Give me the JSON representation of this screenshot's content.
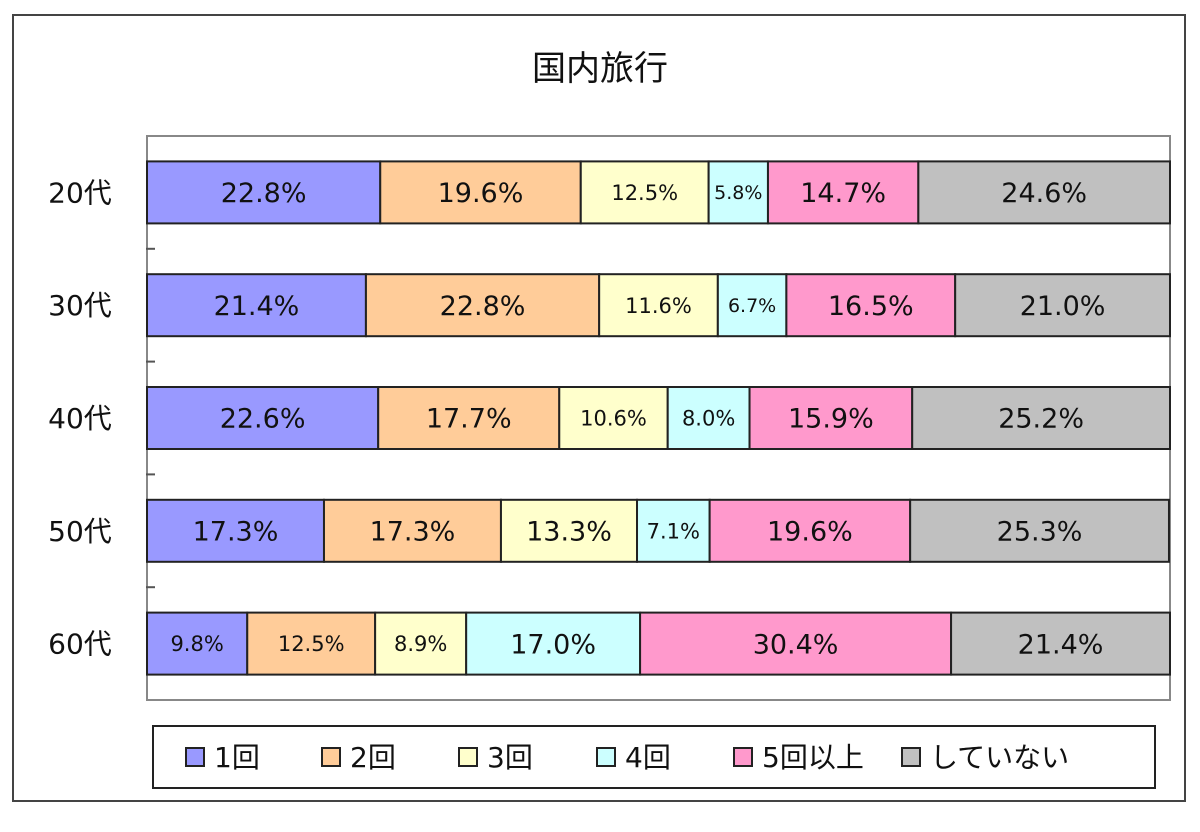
{
  "chart_data": {
    "type": "bar",
    "orientation": "horizontal",
    "stacked": true,
    "percent_stacked": true,
    "title": "国内旅行",
    "categories": [
      "20代",
      "30代",
      "40代",
      "50代",
      "60代"
    ],
    "series": [
      {
        "name": "1回",
        "color": "#9999ff",
        "values": [
          22.8,
          21.4,
          22.6,
          17.3,
          9.8
        ],
        "labels": [
          "22.8%",
          "21.4%",
          "22.6%",
          "17.3%",
          "9.8%"
        ]
      },
      {
        "name": "2回",
        "color": "#ffcc99",
        "values": [
          19.6,
          22.8,
          17.7,
          17.3,
          12.5
        ],
        "labels": [
          "19.6%",
          "22.8%",
          "17.7%",
          "17.3%",
          "12.5%"
        ]
      },
      {
        "name": "3回",
        "color": "#ffffcc",
        "values": [
          12.5,
          11.6,
          10.6,
          13.3,
          8.9
        ],
        "labels": [
          "12.5%",
          "11.6%",
          "10.6%",
          "13.3%",
          "8.9%"
        ]
      },
      {
        "name": "4回",
        "color": "#ccffff",
        "values": [
          5.8,
          6.7,
          8.0,
          7.1,
          17.0
        ],
        "labels": [
          "5.8%",
          "6.7%",
          "8.0%",
          "7.1%",
          "17.0%"
        ]
      },
      {
        "name": "5回以上",
        "color": "#ff99cc",
        "values": [
          14.7,
          16.5,
          15.9,
          19.6,
          30.4
        ],
        "labels": [
          "14.7%",
          "16.5%",
          "15.9%",
          "19.6%",
          "30.4%"
        ]
      },
      {
        "name": "していない",
        "color": "#c0c0c0",
        "values": [
          24.6,
          21.0,
          25.2,
          25.3,
          21.4
        ],
        "labels": [
          "24.6%",
          "21.0%",
          "25.2%",
          "25.3%",
          "21.4%"
        ]
      }
    ],
    "xlim": [
      0,
      100
    ],
    "grid": false,
    "legend_position": "bottom"
  }
}
